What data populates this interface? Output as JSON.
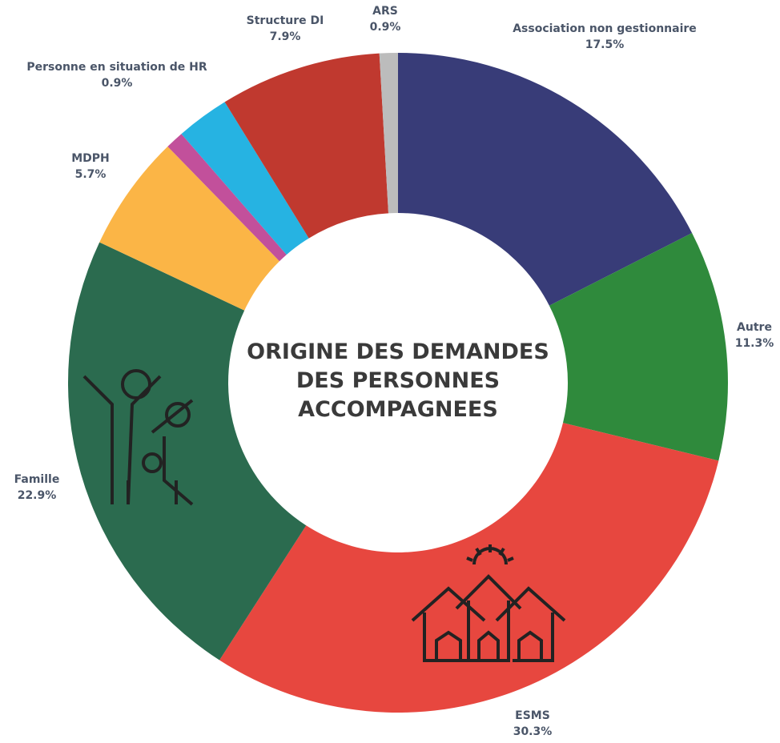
{
  "chart_data": {
    "type": "donut",
    "title": [
      "ORIGINE DES DEMANDES",
      "DES PERSONNES",
      "ACCOMPAGNEES"
    ],
    "categories": [
      "Association non gestionnaire",
      "Autre",
      "ESMS",
      "Famille",
      "MDPH",
      "Personne en situation de HR",
      null,
      "Structure DI",
      "ARS"
    ],
    "values": [
      17.5,
      11.3,
      30.3,
      22.9,
      5.7,
      0.9,
      2.6,
      7.9,
      0.9
    ],
    "value_labels": [
      "17.5%",
      "11.3%",
      "30.3%",
      "22.9%",
      "5.7%",
      "0.9%",
      null,
      "7.9%",
      "0.9%"
    ],
    "colors": [
      "#383c78",
      "#2f8a3c",
      "#e7473f",
      "#2b6b4f",
      "#fbb546",
      "#c2509b",
      "#26b3e2",
      "#c0392f",
      "#bcbcbc"
    ]
  }
}
